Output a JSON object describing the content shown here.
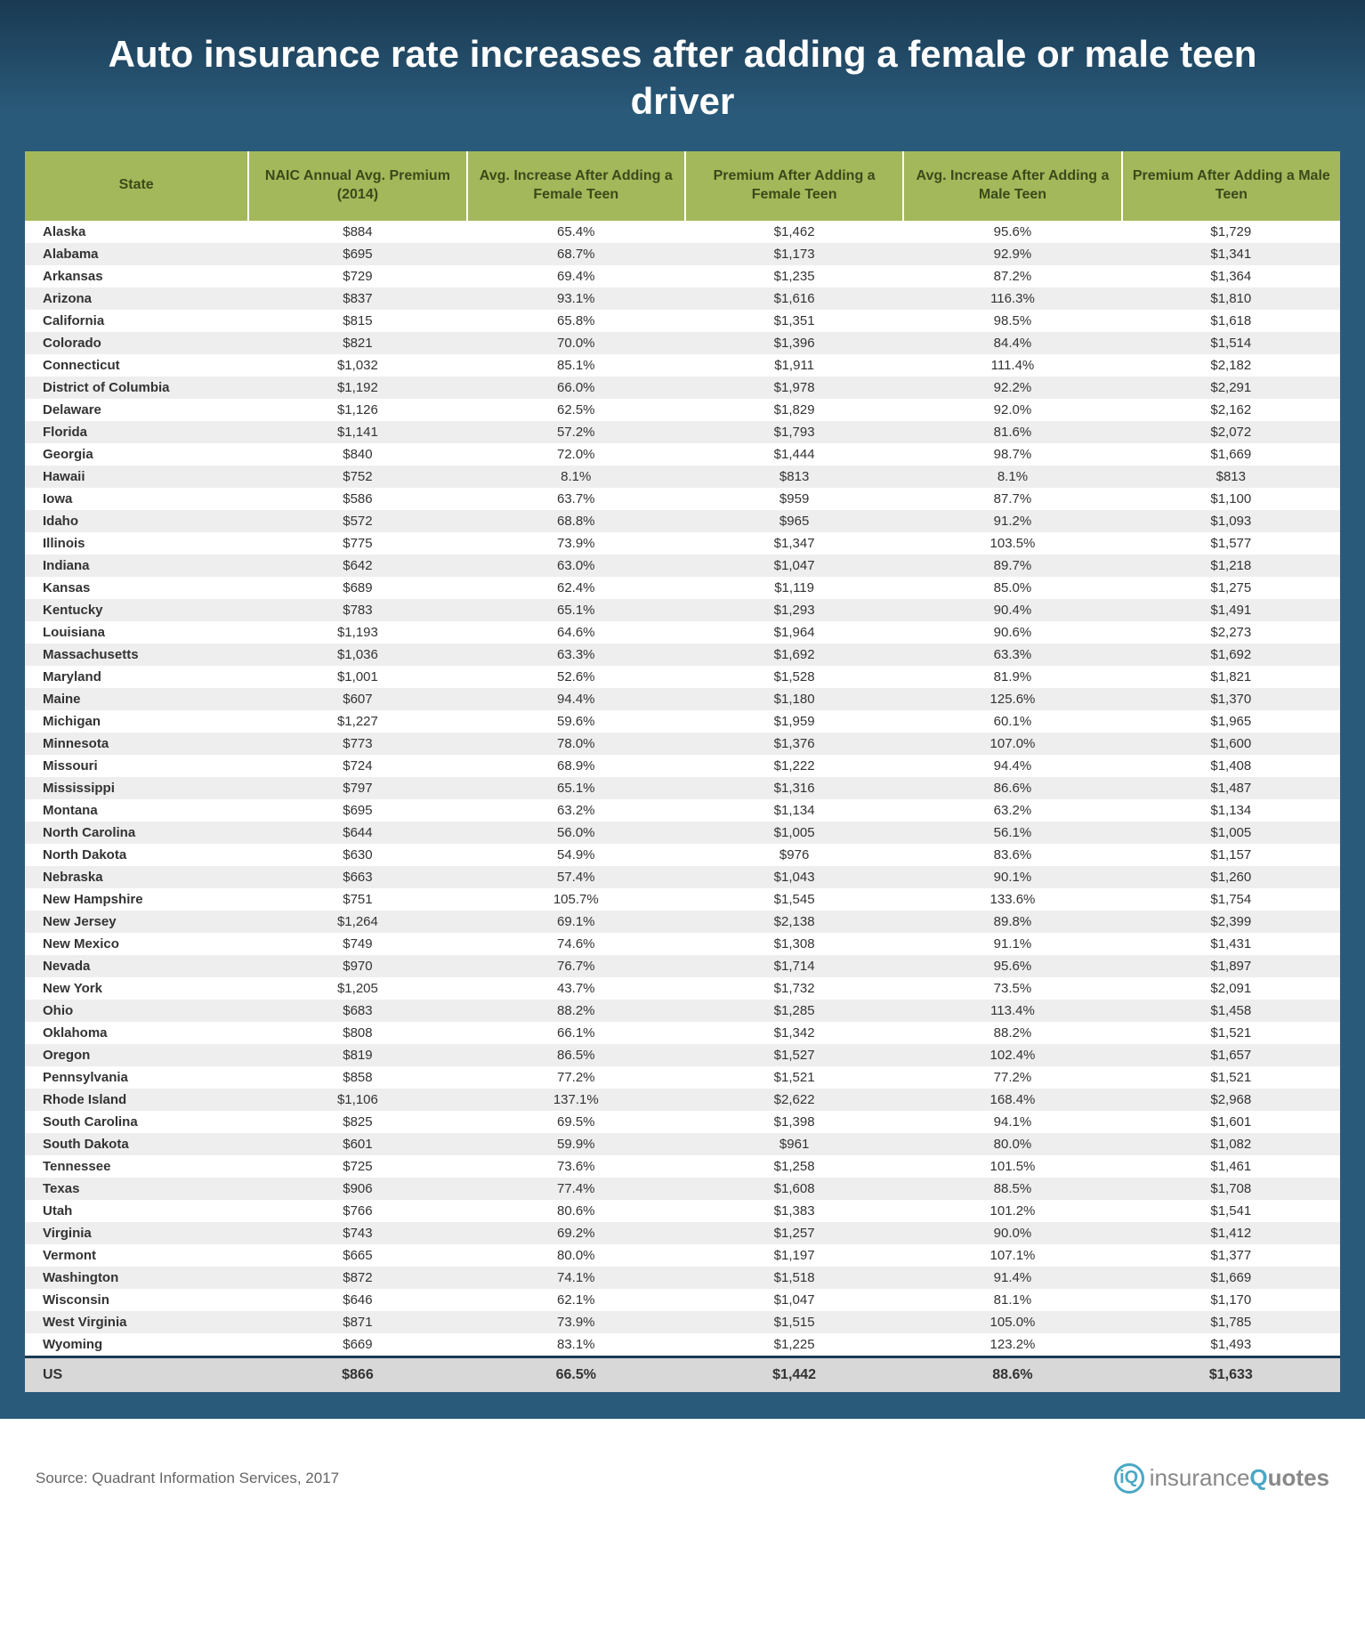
{
  "title": "Auto insurance rate increases after adding a female or male teen driver",
  "columns": [
    "State",
    "NAIC Annual Avg. Premium (2014)",
    "Avg. Increase After Adding a Female Teen",
    "Premium After Adding a Female Teen",
    "Avg. Increase After Adding a Male Teen",
    "Premium After Adding a Male Teen"
  ],
  "rows": [
    [
      "Alaska",
      "$884",
      "65.4%",
      "$1,462",
      "95.6%",
      "$1,729"
    ],
    [
      "Alabama",
      "$695",
      "68.7%",
      "$1,173",
      "92.9%",
      "$1,341"
    ],
    [
      "Arkansas",
      "$729",
      "69.4%",
      "$1,235",
      "87.2%",
      "$1,364"
    ],
    [
      "Arizona",
      "$837",
      "93.1%",
      "$1,616",
      "116.3%",
      "$1,810"
    ],
    [
      "California",
      "$815",
      "65.8%",
      "$1,351",
      "98.5%",
      "$1,618"
    ],
    [
      "Colorado",
      "$821",
      "70.0%",
      "$1,396",
      "84.4%",
      "$1,514"
    ],
    [
      "Connecticut",
      "$1,032",
      "85.1%",
      "$1,911",
      "111.4%",
      "$2,182"
    ],
    [
      "District of Columbia",
      "$1,192",
      "66.0%",
      "$1,978",
      "92.2%",
      "$2,291"
    ],
    [
      "Delaware",
      "$1,126",
      "62.5%",
      "$1,829",
      "92.0%",
      "$2,162"
    ],
    [
      "Florida",
      "$1,141",
      "57.2%",
      "$1,793",
      "81.6%",
      "$2,072"
    ],
    [
      "Georgia",
      "$840",
      "72.0%",
      "$1,444",
      "98.7%",
      "$1,669"
    ],
    [
      "Hawaii",
      "$752",
      "8.1%",
      "$813",
      "8.1%",
      "$813"
    ],
    [
      "Iowa",
      "$586",
      "63.7%",
      "$959",
      "87.7%",
      "$1,100"
    ],
    [
      "Idaho",
      "$572",
      "68.8%",
      "$965",
      "91.2%",
      "$1,093"
    ],
    [
      "Illinois",
      "$775",
      "73.9%",
      "$1,347",
      "103.5%",
      "$1,577"
    ],
    [
      "Indiana",
      "$642",
      "63.0%",
      "$1,047",
      "89.7%",
      "$1,218"
    ],
    [
      "Kansas",
      "$689",
      "62.4%",
      "$1,119",
      "85.0%",
      "$1,275"
    ],
    [
      "Kentucky",
      "$783",
      "65.1%",
      "$1,293",
      "90.4%",
      "$1,491"
    ],
    [
      "Louisiana",
      "$1,193",
      "64.6%",
      "$1,964",
      "90.6%",
      "$2,273"
    ],
    [
      "Massachusetts",
      "$1,036",
      "63.3%",
      "$1,692",
      "63.3%",
      "$1,692"
    ],
    [
      "Maryland",
      "$1,001",
      "52.6%",
      "$1,528",
      "81.9%",
      "$1,821"
    ],
    [
      "Maine",
      "$607",
      "94.4%",
      "$1,180",
      "125.6%",
      "$1,370"
    ],
    [
      "Michigan",
      "$1,227",
      "59.6%",
      "$1,959",
      "60.1%",
      "$1,965"
    ],
    [
      "Minnesota",
      "$773",
      "78.0%",
      "$1,376",
      "107.0%",
      "$1,600"
    ],
    [
      "Missouri",
      "$724",
      "68.9%",
      "$1,222",
      "94.4%",
      "$1,408"
    ],
    [
      "Mississippi",
      "$797",
      "65.1%",
      "$1,316",
      "86.6%",
      "$1,487"
    ],
    [
      "Montana",
      "$695",
      "63.2%",
      "$1,134",
      "63.2%",
      "$1,134"
    ],
    [
      "North Carolina",
      "$644",
      "56.0%",
      "$1,005",
      "56.1%",
      "$1,005"
    ],
    [
      "North Dakota",
      "$630",
      "54.9%",
      "$976",
      "83.6%",
      "$1,157"
    ],
    [
      "Nebraska",
      "$663",
      "57.4%",
      "$1,043",
      "90.1%",
      "$1,260"
    ],
    [
      "New Hampshire",
      "$751",
      "105.7%",
      "$1,545",
      "133.6%",
      "$1,754"
    ],
    [
      "New Jersey",
      "$1,264",
      "69.1%",
      "$2,138",
      "89.8%",
      "$2,399"
    ],
    [
      "New Mexico",
      "$749",
      "74.6%",
      "$1,308",
      "91.1%",
      "$1,431"
    ],
    [
      "Nevada",
      "$970",
      "76.7%",
      "$1,714",
      "95.6%",
      "$1,897"
    ],
    [
      "New York",
      "$1,205",
      "43.7%",
      "$1,732",
      "73.5%",
      "$2,091"
    ],
    [
      "Ohio",
      "$683",
      "88.2%",
      "$1,285",
      "113.4%",
      "$1,458"
    ],
    [
      "Oklahoma",
      "$808",
      "66.1%",
      "$1,342",
      "88.2%",
      "$1,521"
    ],
    [
      "Oregon",
      "$819",
      "86.5%",
      "$1,527",
      "102.4%",
      "$1,657"
    ],
    [
      "Pennsylvania",
      "$858",
      "77.2%",
      "$1,521",
      "77.2%",
      "$1,521"
    ],
    [
      "Rhode Island",
      "$1,106",
      "137.1%",
      "$2,622",
      "168.4%",
      "$2,968"
    ],
    [
      "South Carolina",
      "$825",
      "69.5%",
      "$1,398",
      "94.1%",
      "$1,601"
    ],
    [
      "South Dakota",
      "$601",
      "59.9%",
      "$961",
      "80.0%",
      "$1,082"
    ],
    [
      "Tennessee",
      "$725",
      "73.6%",
      "$1,258",
      "101.5%",
      "$1,461"
    ],
    [
      "Texas",
      "$906",
      "77.4%",
      "$1,608",
      "88.5%",
      "$1,708"
    ],
    [
      "Utah",
      "$766",
      "80.6%",
      "$1,383",
      "101.2%",
      "$1,541"
    ],
    [
      "Virginia",
      "$743",
      "69.2%",
      "$1,257",
      "90.0%",
      "$1,412"
    ],
    [
      "Vermont",
      "$665",
      "80.0%",
      "$1,197",
      "107.1%",
      "$1,377"
    ],
    [
      "Washington",
      "$872",
      "74.1%",
      "$1,518",
      "91.4%",
      "$1,669"
    ],
    [
      "Wisconsin",
      "$646",
      "62.1%",
      "$1,047",
      "81.1%",
      "$1,170"
    ],
    [
      "West Virginia",
      "$871",
      "73.9%",
      "$1,515",
      "105.0%",
      "$1,785"
    ],
    [
      "Wyoming",
      "$669",
      "83.1%",
      "$1,225",
      "123.2%",
      "$1,493"
    ]
  ],
  "summary": [
    "US",
    "$866",
    "66.5%",
    "$1,442",
    "88.6%",
    "$1,633"
  ],
  "source": "Source: Quadrant Information Services, 2017",
  "logo": {
    "part1": "insurance",
    "part2": "Q",
    "part3": "uotes"
  },
  "colors": {
    "header_gradient_top": "#1a3a52",
    "header_gradient_bottom": "#2a5a7a",
    "th_bg": "#a3b85a",
    "th_text": "#3a4a1a",
    "row_even_bg": "#eeeeee",
    "row_odd_bg": "#ffffff",
    "summary_bg": "#d8d8d8",
    "summary_border": "#1a3a52",
    "logo_accent": "#4aa8c4"
  },
  "fonts": {
    "title_size": 42,
    "th_size": 16,
    "td_size": 15
  }
}
